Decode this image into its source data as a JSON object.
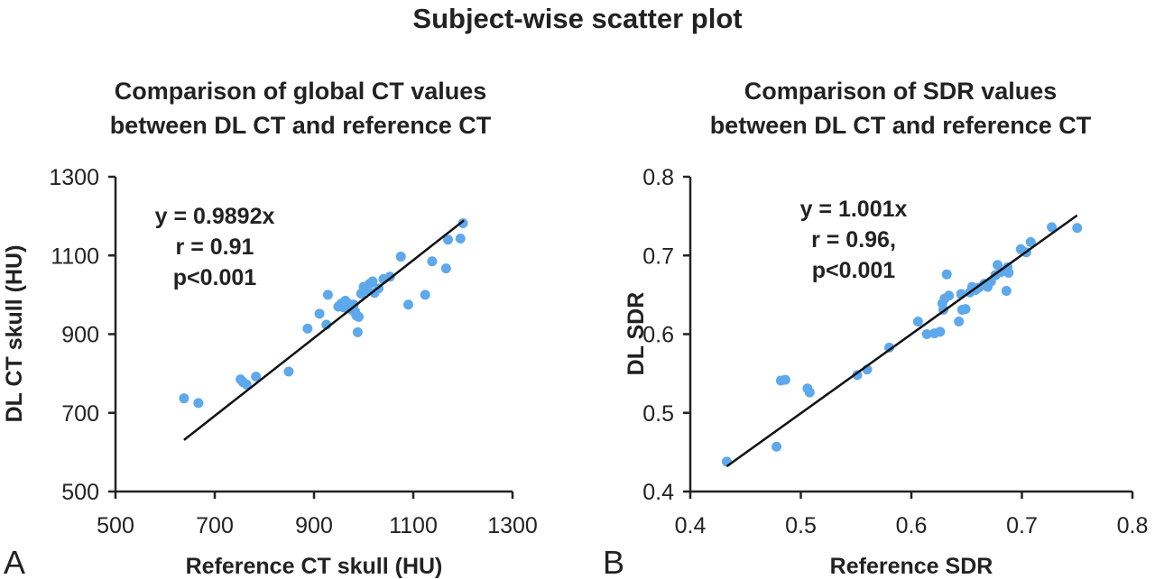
{
  "figure_title": "Subject-wise scatter plot",
  "point_color": "#5ea8ec",
  "chart_data": [
    {
      "type": "scatter",
      "panel_label": "A",
      "title_lines": [
        "Comparison of global CT values",
        "between DL CT and reference CT"
      ],
      "xlabel": "Reference CT skull (HU)",
      "ylabel": "DL CT skull (HU)",
      "xlim": [
        500,
        1300
      ],
      "ylim": [
        500,
        1300
      ],
      "xticks": [
        "500",
        "700",
        "900",
        "1100",
        "1300"
      ],
      "yticks": [
        "500",
        "700",
        "900",
        "1100",
        "1300"
      ],
      "annotation": [
        "y = 0.9892x",
        "r = 0.91",
        "p<0.001"
      ],
      "fit_line": {
        "x": [
          638,
          1202
        ],
        "y": [
          631,
          1189
        ]
      },
      "points": [
        [
          638,
          737
        ],
        [
          667,
          725
        ],
        [
          752,
          785
        ],
        [
          757,
          778
        ],
        [
          764,
          772
        ],
        [
          783,
          792
        ],
        [
          849,
          805
        ],
        [
          887,
          914
        ],
        [
          911,
          952
        ],
        [
          925,
          924
        ],
        [
          928,
          1000
        ],
        [
          949,
          970
        ],
        [
          955,
          978
        ],
        [
          960,
          968
        ],
        [
          963,
          985
        ],
        [
          967,
          980
        ],
        [
          972,
          971
        ],
        [
          976,
          962
        ],
        [
          980,
          975
        ],
        [
          983,
          957
        ],
        [
          985,
          948
        ],
        [
          988,
          905
        ],
        [
          990,
          944
        ],
        [
          995,
          1003
        ],
        [
          1000,
          1020
        ],
        [
          1006,
          1012
        ],
        [
          1012,
          1028
        ],
        [
          1018,
          1034
        ],
        [
          1022,
          1005
        ],
        [
          1030,
          1016
        ],
        [
          1040,
          1040
        ],
        [
          1053,
          1046
        ],
        [
          1075,
          1097
        ],
        [
          1090,
          975
        ],
        [
          1124,
          1000
        ],
        [
          1138,
          1085
        ],
        [
          1166,
          1067
        ],
        [
          1170,
          1140
        ],
        [
          1195,
          1143
        ],
        [
          1200,
          1182
        ]
      ]
    },
    {
      "type": "scatter",
      "panel_label": "B",
      "title_lines": [
        "Comparison of SDR values",
        "between DL CT and reference CT"
      ],
      "xlabel": "Reference SDR",
      "ylabel": "DL SDR",
      "xlim": [
        0.4,
        0.8
      ],
      "ylim": [
        0.4,
        0.8
      ],
      "xticks": [
        "0.4",
        "0.5",
        "0.6",
        "0.7",
        "0.8"
      ],
      "yticks": [
        "0.4",
        "0.5",
        "0.6",
        "0.7",
        "0.8"
      ],
      "annotation": [
        "y = 1.001x",
        "r = 0.96,",
        "p<0.001"
      ],
      "fit_line": {
        "x": [
          0.433,
          0.75
        ],
        "y": [
          0.432,
          0.751
        ]
      },
      "points": [
        [
          0.433,
          0.438
        ],
        [
          0.478,
          0.457
        ],
        [
          0.482,
          0.541
        ],
        [
          0.486,
          0.542
        ],
        [
          0.506,
          0.531
        ],
        [
          0.508,
          0.526
        ],
        [
          0.551,
          0.548
        ],
        [
          0.56,
          0.555
        ],
        [
          0.58,
          0.583
        ],
        [
          0.606,
          0.616
        ],
        [
          0.614,
          0.6
        ],
        [
          0.621,
          0.601
        ],
        [
          0.626,
          0.603
        ],
        [
          0.628,
          0.639
        ],
        [
          0.629,
          0.631
        ],
        [
          0.63,
          0.645
        ],
        [
          0.632,
          0.676
        ],
        [
          0.634,
          0.649
        ],
        [
          0.643,
          0.616
        ],
        [
          0.645,
          0.651
        ],
        [
          0.646,
          0.631
        ],
        [
          0.649,
          0.632
        ],
        [
          0.653,
          0.653
        ],
        [
          0.655,
          0.66
        ],
        [
          0.658,
          0.656
        ],
        [
          0.661,
          0.659
        ],
        [
          0.666,
          0.664
        ],
        [
          0.669,
          0.66
        ],
        [
          0.672,
          0.667
        ],
        [
          0.676,
          0.675
        ],
        [
          0.678,
          0.688
        ],
        [
          0.681,
          0.679
        ],
        [
          0.686,
          0.655
        ],
        [
          0.687,
          0.685
        ],
        [
          0.688,
          0.678
        ],
        [
          0.699,
          0.708
        ],
        [
          0.704,
          0.704
        ],
        [
          0.708,
          0.717
        ],
        [
          0.727,
          0.736
        ],
        [
          0.75,
          0.735
        ]
      ]
    }
  ]
}
